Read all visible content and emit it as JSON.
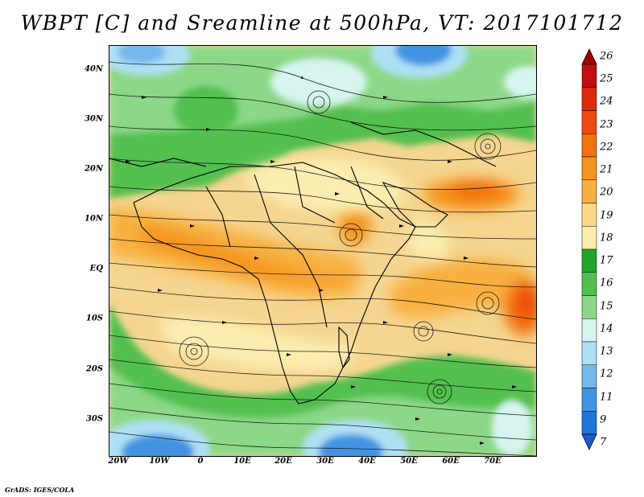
{
  "title": "WBPT [C] and Sreamline at 500hPa, VT: 2017101712",
  "footer": "GrADS: IGES/COLA",
  "axes": {
    "lat_labels": [
      "40N",
      "30N",
      "20N",
      "10N",
      "EQ",
      "10S",
      "20S",
      "30S"
    ],
    "lon_labels": [
      "20W",
      "10W",
      "0",
      "10E",
      "20E",
      "30E",
      "40E",
      "50E",
      "60E",
      "70E"
    ]
  },
  "colorbar": {
    "labels": [
      "26",
      "25",
      "24",
      "23",
      "22",
      "21",
      "20",
      "19",
      "18",
      "17",
      "16",
      "15",
      "14",
      "13",
      "12",
      "11",
      "9",
      "7"
    ],
    "colors": [
      "#a00000",
      "#c01010",
      "#dc2a0a",
      "#ee4a10",
      "#f2720e",
      "#f5941c",
      "#f8b040",
      "#fcd888",
      "#fbedb0",
      "#22a32a",
      "#52c050",
      "#8cd888",
      "#d6f4f0",
      "#aee0f4",
      "#76b8ec",
      "#4294e2",
      "#2274d8",
      "#1a5cd0"
    ]
  },
  "map": {
    "contour_field": "WBPT",
    "units": "C",
    "level": "500hPa",
    "valid_time": "2017101712"
  }
}
